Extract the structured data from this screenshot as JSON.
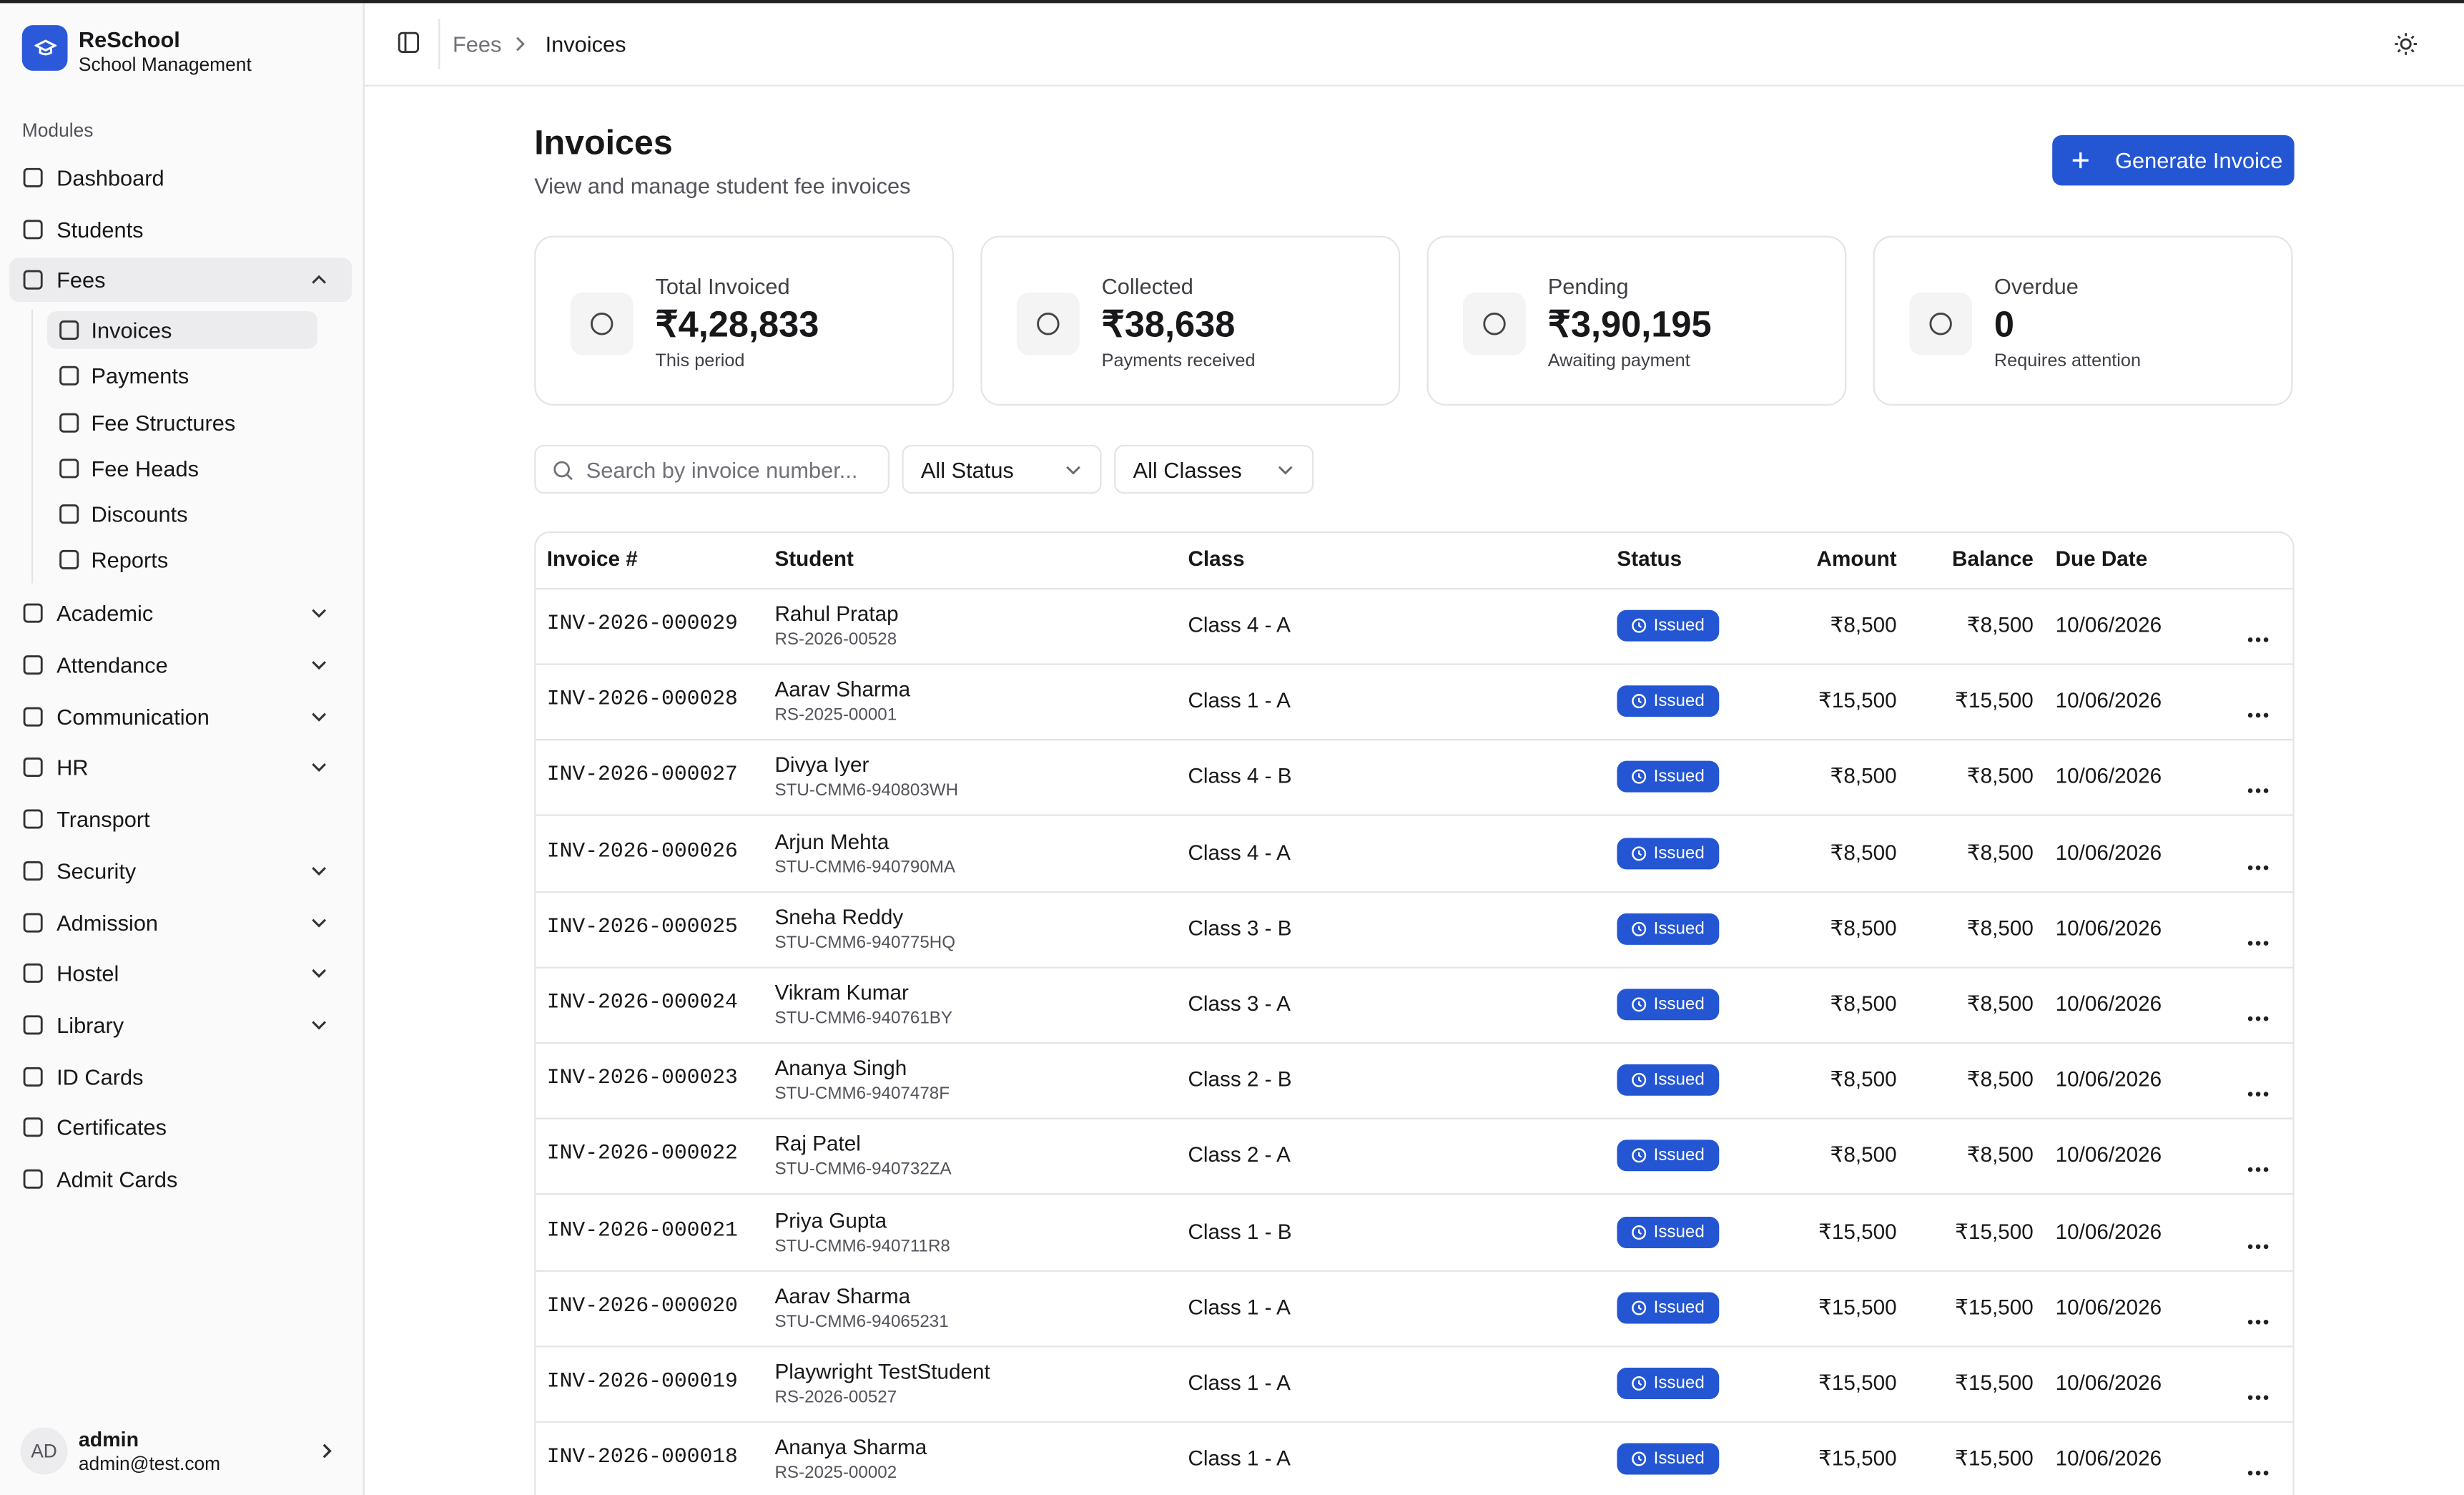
{
  "sidebar": {
    "brand": {
      "name": "ReSchool",
      "subtitle": "School Management"
    },
    "section": "Modules",
    "nav": [
      {
        "label": "Dashboard"
      },
      {
        "label": "Students"
      },
      {
        "label": "Fees",
        "expandable": true,
        "open": true,
        "children": [
          "Invoices",
          "Payments",
          "Fee Structures",
          "Fee Heads",
          "Discounts",
          "Reports"
        ]
      },
      {
        "label": "Academic",
        "expandable": true
      },
      {
        "label": "Attendance",
        "expandable": true
      },
      {
        "label": "Communication",
        "expandable": true
      },
      {
        "label": "HR",
        "expandable": true
      },
      {
        "label": "Transport"
      },
      {
        "label": "Security",
        "expandable": true
      },
      {
        "label": "Admission",
        "expandable": true
      },
      {
        "label": "Hostel",
        "expandable": true
      },
      {
        "label": "Library",
        "expandable": true
      },
      {
        "label": "ID Cards"
      },
      {
        "label": "Certificates"
      },
      {
        "label": "Admit Cards"
      }
    ],
    "user": {
      "initials": "AD",
      "name": "admin",
      "email": "admin@test.com"
    }
  },
  "header": {
    "breadcrumb": [
      "Fees",
      "Invoices"
    ]
  },
  "page": {
    "title": "Invoices",
    "subtitle": "View and manage student fee invoices",
    "button": "Generate Invoice"
  },
  "stats": [
    {
      "label": "Total Invoiced",
      "value": "₹4,28,833",
      "note": "This period"
    },
    {
      "label": "Collected",
      "value": "₹38,638",
      "note": "Payments received"
    },
    {
      "label": "Pending",
      "value": "₹3,90,195",
      "note": "Awaiting payment"
    },
    {
      "label": "Overdue",
      "value": "0",
      "note": "Requires attention"
    }
  ],
  "filters": {
    "search": "Search by invoice number...",
    "selects": [
      "All Status",
      "All Classes"
    ]
  },
  "table": {
    "columns": [
      "Invoice #",
      "Student",
      "Class",
      "Status",
      "Amount",
      "Balance",
      "Due Date"
    ],
    "rows": [
      [
        "INV-2026-000029",
        "Rahul Pratap",
        "RS-2026-00528",
        "Class 4 - A",
        "Issued",
        "₹8,500",
        "₹8,500",
        "10/06/2026"
      ],
      [
        "INV-2026-000028",
        "Aarav Sharma",
        "RS-2025-00001",
        "Class 1 - A",
        "Issued",
        "₹15,500",
        "₹15,500",
        "10/06/2026"
      ],
      [
        "INV-2026-000027",
        "Divya Iyer",
        "STU-CMM6-940803WH",
        "Class 4 - B",
        "Issued",
        "₹8,500",
        "₹8,500",
        "10/06/2026"
      ],
      [
        "INV-2026-000026",
        "Arjun Mehta",
        "STU-CMM6-940790MA",
        "Class 4 - A",
        "Issued",
        "₹8,500",
        "₹8,500",
        "10/06/2026"
      ],
      [
        "INV-2026-000025",
        "Sneha Reddy",
        "STU-CMM6-940775HQ",
        "Class 3 - B",
        "Issued",
        "₹8,500",
        "₹8,500",
        "10/06/2026"
      ],
      [
        "INV-2026-000024",
        "Vikram Kumar",
        "STU-CMM6-940761BY",
        "Class 3 - A",
        "Issued",
        "₹8,500",
        "₹8,500",
        "10/06/2026"
      ],
      [
        "INV-2026-000023",
        "Ananya Singh",
        "STU-CMM6-9407478F",
        "Class 2 - B",
        "Issued",
        "₹8,500",
        "₹8,500",
        "10/06/2026"
      ],
      [
        "INV-2026-000022",
        "Raj Patel",
        "STU-CMM6-940732ZA",
        "Class 2 - A",
        "Issued",
        "₹8,500",
        "₹8,500",
        "10/06/2026"
      ],
      [
        "INV-2026-000021",
        "Priya Gupta",
        "STU-CMM6-940711R8",
        "Class 1 - B",
        "Issued",
        "₹15,500",
        "₹15,500",
        "10/06/2026"
      ],
      [
        "INV-2026-000020",
        "Aarav Sharma",
        "STU-CMM6-94065231",
        "Class 1 - A",
        "Issued",
        "₹15,500",
        "₹15,500",
        "10/06/2026"
      ],
      [
        "INV-2026-000019",
        "Playwright TestStudent",
        "RS-2026-00527",
        "Class 1 - A",
        "Issued",
        "₹15,500",
        "₹15,500",
        "10/06/2026"
      ],
      [
        "INV-2026-000018",
        "Ananya Sharma",
        "RS-2025-00002",
        "Class 1 - A",
        "Issued",
        "₹15,500",
        "₹15,500",
        "10/06/2026"
      ]
    ]
  }
}
